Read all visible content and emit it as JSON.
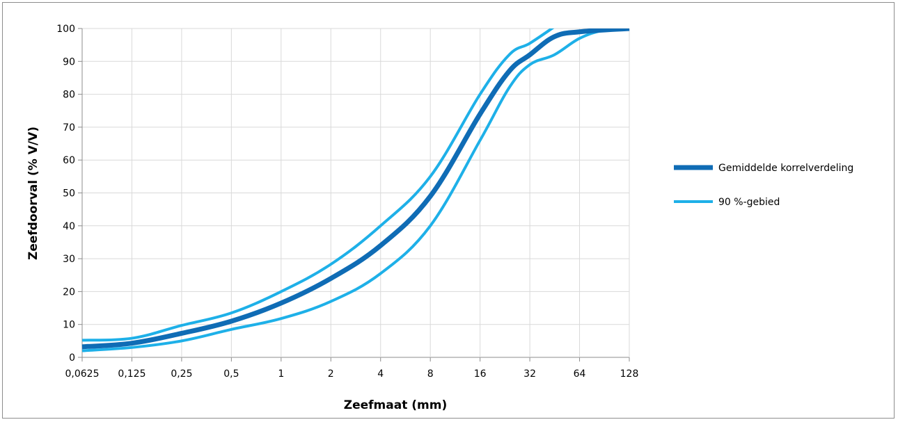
{
  "chart_data": {
    "type": "line",
    "xlabel": "Zeefmaat (mm)",
    "ylabel": "Zeefdoorval (% V/V)",
    "x_scale": "log2",
    "x": [
      0.0625,
      0.125,
      0.25,
      0.5,
      1,
      2,
      4,
      8,
      16,
      32,
      64,
      128
    ],
    "xticks": [
      "0,0625",
      "0,125",
      "0,25",
      "0,5",
      "1",
      "2",
      "4",
      "8",
      "16",
      "32",
      "64",
      "128"
    ],
    "yticks": [
      "0",
      "10",
      "20",
      "30",
      "40",
      "50",
      "60",
      "70",
      "80",
      "90",
      "100"
    ],
    "ylim": [
      0,
      100
    ],
    "grid": true,
    "legend_position": "right",
    "legend": [
      {
        "label": "Gemiddelde korrelverdeling",
        "color": "#0f6cb5",
        "width": 7
      },
      {
        "label": "90 %-gebied",
        "color": "#1eb0e8",
        "width": 4
      }
    ],
    "series": [
      {
        "name": "Gemiddelde korrelverdeling",
        "color": "#0f6cb5",
        "width": 7,
        "points": [
          [
            0.0625,
            3.2
          ],
          [
            0.125,
            4.3
          ],
          [
            0.25,
            7.3
          ],
          [
            0.5,
            11
          ],
          [
            1,
            16.5
          ],
          [
            2,
            24
          ],
          [
            4,
            34
          ],
          [
            8,
            49
          ],
          [
            16,
            74
          ],
          [
            24,
            87
          ],
          [
            32,
            92
          ],
          [
            45,
            97.5
          ],
          [
            64,
            99
          ],
          [
            128,
            100
          ]
        ]
      },
      {
        "name": "90 %-gebied",
        "color": "#1eb0e8",
        "width": 4,
        "points": [
          [
            0.0625,
            5.2
          ],
          [
            0.125,
            5.8
          ],
          [
            0.25,
            9.7
          ],
          [
            0.5,
            13.5
          ],
          [
            1,
            20
          ],
          [
            2,
            28.3
          ],
          [
            4,
            40
          ],
          [
            8,
            55
          ],
          [
            16,
            80
          ],
          [
            24,
            92
          ],
          [
            32,
            95.5
          ],
          [
            45,
            100.5
          ]
        ]
      },
      {
        "name": "90 %-gebied",
        "color": "#1eb0e8",
        "width": 4,
        "points": [
          [
            0.0625,
            2
          ],
          [
            0.125,
            3
          ],
          [
            0.25,
            5
          ],
          [
            0.5,
            8.5
          ],
          [
            1,
            11.8
          ],
          [
            2,
            17
          ],
          [
            4,
            25.5
          ],
          [
            8,
            40
          ],
          [
            16,
            66
          ],
          [
            24,
            82
          ],
          [
            32,
            89
          ],
          [
            45,
            92
          ],
          [
            64,
            97
          ],
          [
            90,
            99.5
          ],
          [
            128,
            100
          ]
        ]
      }
    ]
  }
}
